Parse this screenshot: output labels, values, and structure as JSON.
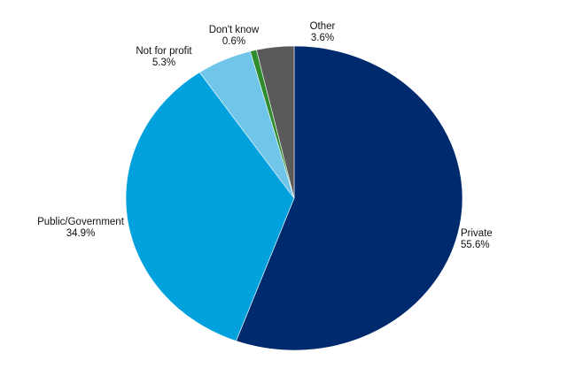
{
  "chart_data": {
    "type": "pie",
    "start_angle_deg": 0,
    "direction": "clockwise",
    "slices": [
      {
        "label": "Private",
        "value": 55.6,
        "value_text": "55.6%",
        "color": "#002a6e"
      },
      {
        "label": "Public/Government",
        "value": 34.9,
        "value_text": "34.9%",
        "color": "#00a1dc"
      },
      {
        "label": "Not for profit",
        "value": 5.3,
        "value_text": "5.3%",
        "color": "#6fc6e9"
      },
      {
        "label": "Don't know",
        "value": 0.6,
        "value_text": "0.6%",
        "color": "#2e8b2e"
      },
      {
        "label": "Other",
        "value": 3.6,
        "value_text": "3.6%",
        "color": "#5a5a5a"
      }
    ],
    "legend": "none"
  }
}
